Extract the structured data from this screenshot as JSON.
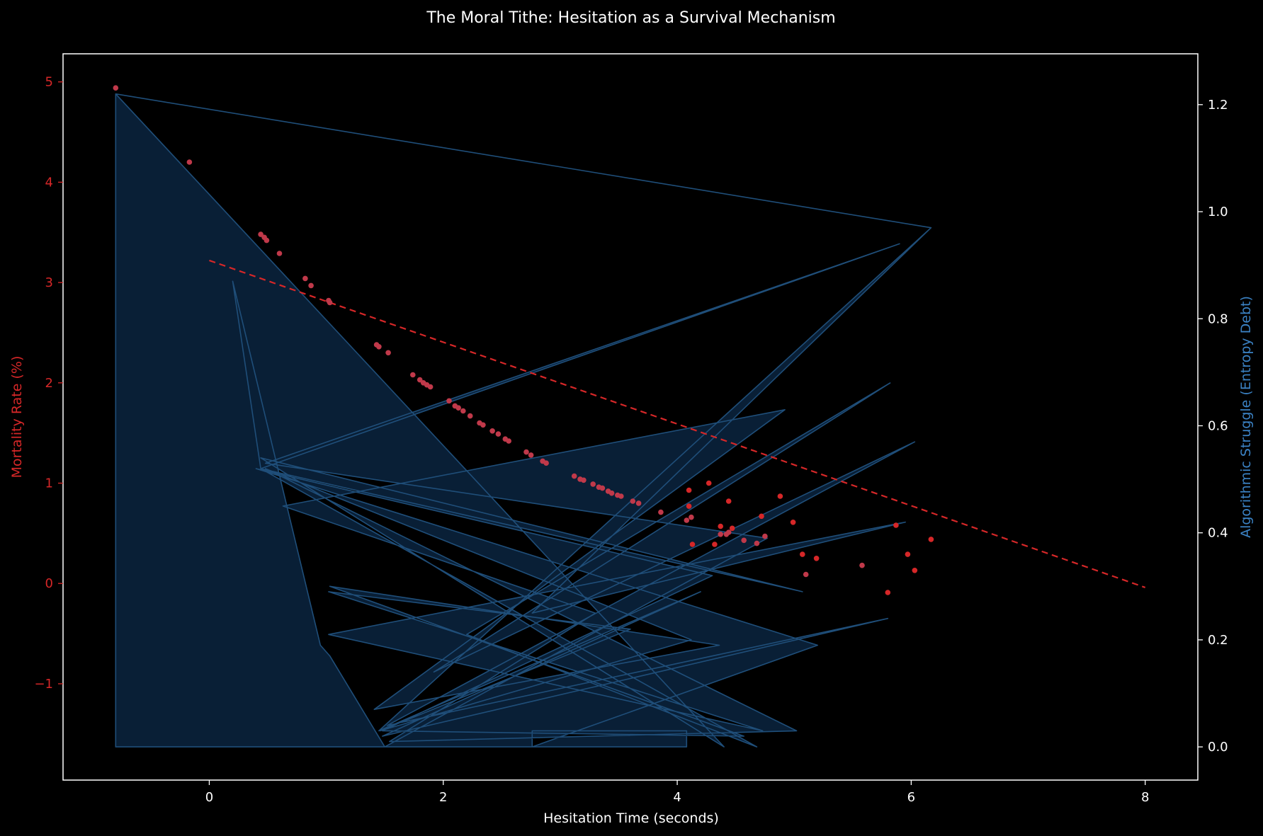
{
  "colors": {
    "background": "#000000",
    "axes": "#ffffff",
    "mortality": "#d62728",
    "mortality_points": "#c0394a",
    "entropy": "#1f4e79",
    "entropy_fill": "#0b2540",
    "entropy_label": "#3b82c4"
  },
  "chart_data": {
    "type": "scatter",
    "title": "The Moral Tithe: Hesitation as a Survival Mechanism",
    "xlabel": "Hesitation Time (seconds)",
    "ylabel": "Mortality Rate (%)",
    "y2label": "Algorithmic Struggle (Entropy Debt)",
    "xlim": [
      -1.25,
      8.45
    ],
    "ylim": [
      -1.96,
      5.28
    ],
    "y2lim": [
      -0.062,
      1.295
    ],
    "x_ticks": [
      0,
      2,
      4,
      6,
      8
    ],
    "y_ticks": [
      -1,
      0,
      1,
      2,
      3,
      4,
      5
    ],
    "y2_ticks": [
      0.0,
      0.2,
      0.4,
      0.6,
      0.8,
      1.0,
      1.2
    ],
    "grid": false,
    "series": [
      {
        "name": "",
        "kind": "scatter",
        "axis": "left",
        "x": [
          -0.8,
          -0.17,
          0.44,
          0.47,
          0.49,
          0.6,
          0.82,
          0.87,
          1.02,
          1.03,
          1.43,
          1.45,
          1.53,
          1.74,
          1.8,
          1.83,
          1.86,
          1.89,
          2.05,
          2.1,
          2.13,
          2.17,
          2.23,
          2.31,
          2.34,
          2.42,
          2.47,
          2.53,
          2.56,
          2.71,
          2.75,
          2.85,
          2.88,
          3.12,
          3.17,
          3.2,
          3.28,
          3.33,
          3.36,
          3.41,
          3.44,
          3.49,
          3.52,
          3.62,
          3.67,
          3.86,
          4.08,
          4.12,
          4.37,
          4.42,
          4.44,
          4.57,
          4.68,
          4.75,
          5.1,
          5.58
        ],
        "y": [
          4.94,
          4.2,
          3.48,
          3.45,
          3.42,
          3.29,
          3.04,
          2.97,
          2.82,
          2.8,
          2.38,
          2.36,
          2.3,
          2.08,
          2.03,
          2.0,
          1.98,
          1.96,
          1.82,
          1.77,
          1.75,
          1.72,
          1.67,
          1.6,
          1.58,
          1.52,
          1.49,
          1.44,
          1.42,
          1.31,
          1.28,
          1.22,
          1.2,
          1.07,
          1.04,
          1.03,
          0.99,
          0.96,
          0.95,
          0.92,
          0.9,
          0.88,
          0.87,
          0.82,
          0.8,
          0.71,
          0.63,
          0.66,
          0.49,
          0.49,
          0.51,
          0.43,
          0.4,
          0.47,
          0.09,
          0.18
        ]
      },
      {
        "name": "",
        "kind": "scatter",
        "axis": "left",
        "x": [
          4.1,
          4.27,
          4.44,
          4.88,
          4.99,
          5.07,
          5.19,
          5.8,
          5.87,
          5.97,
          6.03,
          6.17,
          4.72,
          4.1,
          4.13,
          4.32,
          4.37,
          4.47
        ],
        "y": [
          0.93,
          1.0,
          0.82,
          0.87,
          0.61,
          0.29,
          0.25,
          -0.09,
          0.58,
          0.29,
          0.13,
          0.44,
          0.67,
          0.77,
          0.39,
          0.39,
          0.57,
          0.55
        ]
      },
      {
        "name": "",
        "kind": "line",
        "axis": "left",
        "style": "dashed",
        "x": [
          0,
          8
        ],
        "y": [
          3.22,
          -0.04
        ]
      },
      {
        "name": "",
        "kind": "filled-polyline",
        "axis": "right",
        "x": [
          -0.8,
          6.17,
          -0.8,
          4.4,
          0.44,
          5.07,
          0.44,
          0.2,
          0.95,
          1.03,
          1.5,
          4.77,
          0.48,
          5.9,
          0.44,
          4.68,
          2.2,
          5.82,
          1.92,
          6.03,
          1.52,
          5.8,
          1.48,
          4.2,
          1.45,
          6.17,
          2.76,
          5.95,
          1.02,
          4.73,
          1.02,
          3.6,
          1.46,
          4.12,
          0.48,
          5.02,
          1.54,
          3.3,
          0.63,
          4.92,
          1.41,
          4.36,
          1.03,
          4.57,
          1.48,
          4.3,
          0.4,
          5.2,
          2.76,
          4.08,
          4.08,
          2.76,
          2.76,
          -0.8
        ],
        "y": [
          1.22,
          0.97,
          1.22,
          0.0,
          0.54,
          0.29,
          0.52,
          0.87,
          0.19,
          0.17,
          0.0,
          0.39,
          0.53,
          0.94,
          0.52,
          0.0,
          0.21,
          0.68,
          0.14,
          0.57,
          0.04,
          0.24,
          0.02,
          0.29,
          0.03,
          0.97,
          0.25,
          0.42,
          0.21,
          0.03,
          0.29,
          0.22,
          0.03,
          0.2,
          0.52,
          0.03,
          0.01,
          0.25,
          0.45,
          0.63,
          0.07,
          0.19,
          0.3,
          0.02,
          0.03,
          0.32,
          0.52,
          0.19,
          0.0,
          0.0,
          0.03,
          0.03,
          0.0,
          0.0
        ]
      }
    ]
  }
}
